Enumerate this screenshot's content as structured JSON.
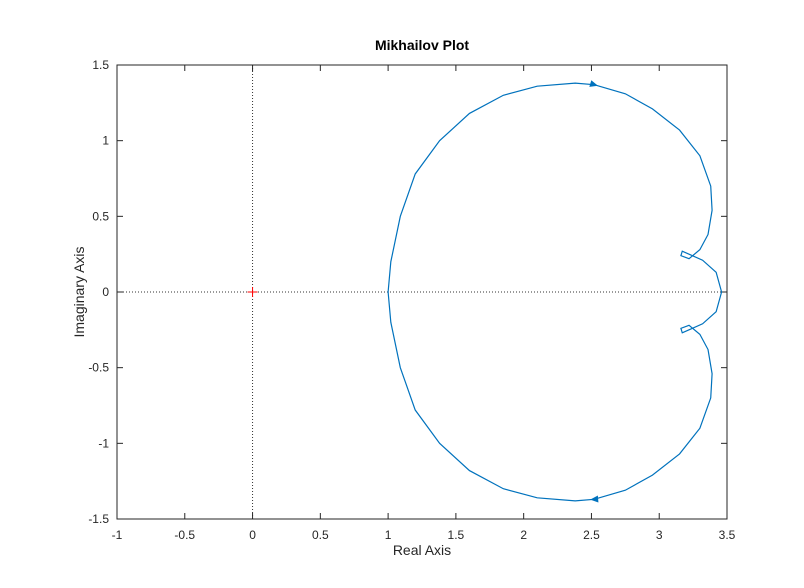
{
  "chart_data": {
    "type": "line",
    "title": "Mikhailov Plot",
    "x_label": "Real Axis",
    "y_label": "Imaginary Axis",
    "xlim": [
      -1,
      3.5
    ],
    "ylim": [
      -1.5,
      1.5
    ],
    "xticks": [
      -1,
      -0.5,
      0,
      0.5,
      1,
      1.5,
      2,
      2.5,
      3,
      3.5
    ],
    "yticks": [
      -1.5,
      -1,
      -0.5,
      0,
      0.5,
      1,
      1.5
    ],
    "grid": false,
    "series": [
      {
        "color": "#0072bd",
        "x": [
          1.0,
          1.02,
          1.09,
          1.2,
          1.38,
          1.6,
          1.85,
          2.1,
          2.38,
          2.52,
          2.75,
          2.95,
          3.15,
          3.3,
          3.38,
          3.39,
          3.36,
          3.3,
          3.22,
          3.16,
          3.17,
          3.22,
          3.32,
          3.42,
          3.46,
          3.42,
          3.32,
          3.22,
          3.17,
          3.16,
          3.22,
          3.3,
          3.36,
          3.39,
          3.38,
          3.3,
          3.15,
          2.95,
          2.75,
          2.52,
          2.38,
          2.1,
          1.85,
          1.6,
          1.38,
          1.2,
          1.09,
          1.02,
          1.0
        ],
        "values": [
          0,
          0.2,
          0.5,
          0.78,
          1.0,
          1.18,
          1.3,
          1.36,
          1.38,
          1.37,
          1.31,
          1.21,
          1.07,
          0.9,
          0.7,
          0.54,
          0.38,
          0.28,
          0.22,
          0.24,
          0.27,
          0.25,
          0.21,
          0.13,
          0,
          -0.13,
          -0.21,
          -0.25,
          -0.27,
          -0.24,
          -0.22,
          -0.28,
          -0.38,
          -0.54,
          -0.7,
          -0.9,
          -1.07,
          -1.21,
          -1.31,
          -1.37,
          -1.38,
          -1.36,
          -1.3,
          -1.18,
          -1.0,
          -0.78,
          -0.5,
          -0.2,
          0
        ]
      }
    ],
    "markers": [
      {
        "x": 0,
        "y": 0,
        "color": "#ff0000"
      }
    ]
  }
}
